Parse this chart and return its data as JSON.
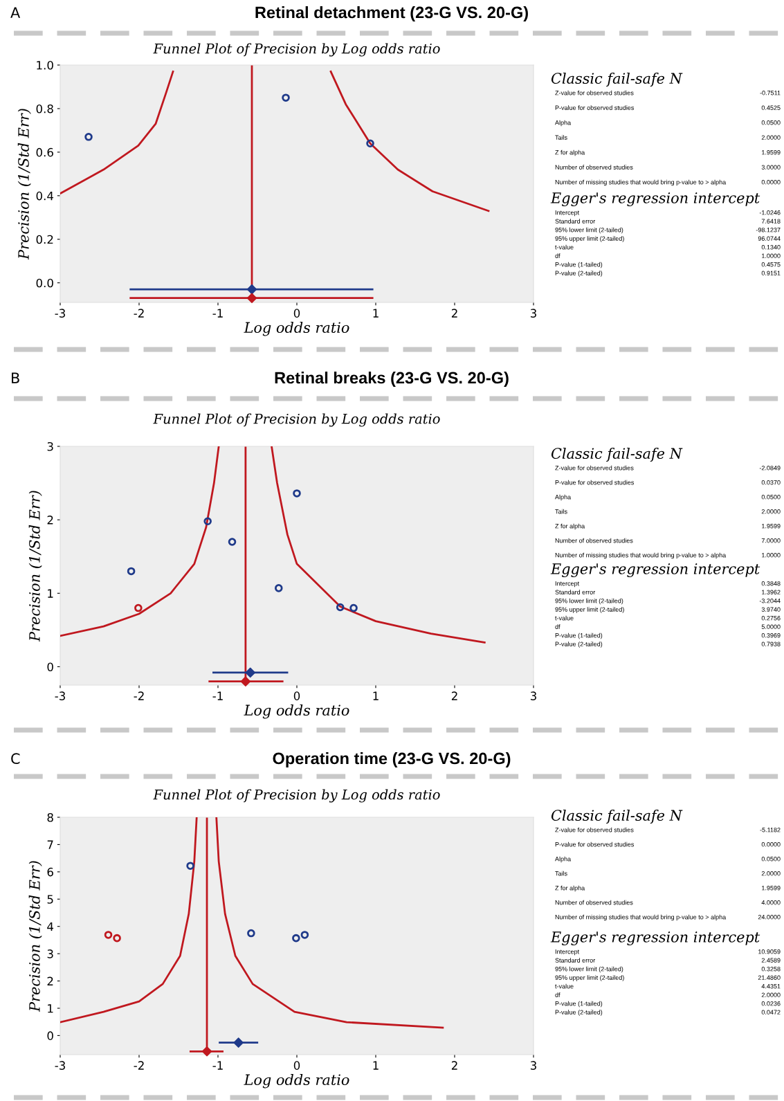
{
  "chart_data": [
    {
      "type": "scatter",
      "title": "Retinal detachment (23-G VS. 20-G)",
      "subtitle": "Funnel Plot of Precision by Log odds ratio",
      "xlabel": "Log odds ratio",
      "ylabel": "Precision (1/Std Err)",
      "annotations": [
        "A"
      ],
      "xlim": [
        -3,
        3
      ],
      "xticks": [
        -3,
        -2,
        -1,
        0,
        1,
        2,
        3
      ],
      "ylim": [
        -0.09,
        1.0
      ],
      "yticks": [
        {
          "value": 0,
          "label": "0.0"
        },
        0.2,
        0.4,
        0.6,
        0.8,
        {
          "value": 1,
          "label": "1.0"
        }
      ],
      "grid": false,
      "ref_lines": [
        {
          "axis": "x",
          "value": -0.57,
          "color": "#c0181f"
        }
      ],
      "series": [
        {
          "type": "line",
          "color": "#c0181f",
          "x": [
            -3,
            -2.45,
            -2.01,
            -1.79,
            -1.66,
            -1.57
          ],
          "values": [
            0.41,
            0.52,
            0.63,
            0.73,
            0.87,
            0.97
          ]
        },
        {
          "type": "line",
          "color": "#c0181f",
          "x": [
            0.43,
            0.62,
            0.93,
            1.28,
            1.72,
            2.43
          ],
          "values": [
            0.97,
            0.82,
            0.64,
            0.52,
            0.42,
            0.33
          ]
        },
        {
          "type": "scatter",
          "marker": "circle",
          "color": "#1f3a8a",
          "x": [
            -2.64,
            -0.14,
            0.93
          ],
          "values": [
            0.67,
            0.85,
            0.64
          ]
        },
        {
          "type": "scatter",
          "marker": "diamond",
          "color": "#1f3a8a",
          "x": [
            -0.57
          ],
          "values": [
            -0.03
          ],
          "xerrors": [
            [
              -2.12,
              0.97
            ]
          ]
        },
        {
          "type": "scatter",
          "marker": "diamond",
          "color": "#c0181f",
          "x": [
            -0.57
          ],
          "values": [
            -0.07
          ],
          "xerrors": [
            [
              -2.12,
              0.97
            ]
          ]
        }
      ]
    },
    {
      "type": "other",
      "title": "Classic fail-safe N",
      "categories": [
        "Z-value for observed studies",
        "P-value for observed studies",
        "Alpha",
        "Tails",
        "Z for alpha",
        "Number of observed studies",
        "Number of missing studies that would bring p-value to > alpha"
      ],
      "value_labels": [
        "-0.7511",
        "0.4525",
        "0.0500",
        "2.0000",
        "1.9599",
        "3.0000",
        "0.0000"
      ]
    },
    {
      "type": "other",
      "title": "Egger's regression intercept",
      "categories": [
        "Intercept",
        "Standard error",
        "95% lower limit (2-tailed)",
        "95% upper limit (2-tailed)",
        "t-value",
        "df",
        "P-value (1-tailed)",
        "P-value (2-tailed)"
      ],
      "value_labels": [
        "-1.0246",
        "7.6418",
        "-98.1237",
        "96.0744",
        "0.1340",
        "1.0000",
        "0.4575",
        "0.9151"
      ]
    },
    {
      "type": "scatter",
      "title": "Retinal breaks (23-G VS. 20-G)",
      "subtitle": "Funnel Plot of Precision by Log odds ratio",
      "xlabel": "Log odds ratio",
      "ylabel": "Precision (1/Std Err)",
      "annotations": [
        "B"
      ],
      "xlim": [
        -3,
        3
      ],
      "xticks": [
        -3,
        -2,
        -1,
        0,
        1,
        2,
        3
      ],
      "ylim": [
        -0.25,
        3
      ],
      "yticks": [
        0,
        1,
        2,
        3
      ],
      "grid": false,
      "ref_lines": [
        {
          "axis": "x",
          "value": -0.65,
          "color": "#c0181f"
        }
      ],
      "series": [
        {
          "type": "line",
          "color": "#c0181f",
          "x": [
            -3,
            -2.45,
            -2.0,
            -1.6,
            -1.3,
            -1.15,
            -1.05,
            -0.99
          ],
          "values": [
            0.42,
            0.55,
            0.72,
            1.0,
            1.4,
            1.9,
            2.5,
            3.0
          ]
        },
        {
          "type": "line",
          "color": "#c0181f",
          "x": [
            -0.32,
            -0.25,
            -0.12,
            0.0,
            0.55,
            1.0,
            1.7,
            2.38
          ],
          "values": [
            3.0,
            2.5,
            1.8,
            1.4,
            0.82,
            0.62,
            0.45,
            0.33
          ]
        },
        {
          "type": "scatter",
          "marker": "circle",
          "color": "#1f3a8a",
          "x": [
            -2.1,
            -1.13,
            -0.82,
            0.0,
            -0.23,
            0.55,
            0.72
          ],
          "values": [
            1.3,
            1.98,
            1.7,
            2.36,
            1.07,
            0.81,
            0.8
          ]
        },
        {
          "type": "scatter",
          "marker": "circle",
          "color": "#c0181f",
          "x": [
            -2.01
          ],
          "values": [
            0.8
          ]
        },
        {
          "type": "scatter",
          "marker": "diamond",
          "color": "#1f3a8a",
          "x": [
            -0.59
          ],
          "values": [
            -0.08
          ],
          "xerrors": [
            [
              -1.07,
              -0.11
            ]
          ]
        },
        {
          "type": "scatter",
          "marker": "diamond",
          "color": "#c0181f",
          "x": [
            -0.65
          ],
          "values": [
            -0.2
          ],
          "xerrors": [
            [
              -1.12,
              -0.17
            ]
          ]
        }
      ]
    },
    {
      "type": "other",
      "title": "Classic fail-safe N",
      "categories": [
        "Z-value for observed studies",
        "P-value for observed studies",
        "Alpha",
        "Tails",
        "Z for alpha",
        "Number of observed studies",
        "Number of missing studies that would bring p-value to > alpha"
      ],
      "value_labels": [
        "-2.0849",
        "0.0370",
        "0.0500",
        "2.0000",
        "1.9599",
        "7.0000",
        "1.0000"
      ]
    },
    {
      "type": "other",
      "title": "Egger's regression intercept",
      "categories": [
        "Intercept",
        "Standard error",
        "95% lower limit (2-tailed)",
        "95% upper limit (2-tailed)",
        "t-value",
        "df",
        "P-value (1-tailed)",
        "P-value (2-tailed)"
      ],
      "value_labels": [
        "0.3848",
        "1.3962",
        "-3.2044",
        "3.9740",
        "0.2756",
        "5.0000",
        "0.3969",
        "0.7938"
      ]
    },
    {
      "type": "scatter",
      "title": "Operation time (23-G VS. 20-G)",
      "subtitle": "Funnel Plot of Precision by Log odds ratio",
      "xlabel": "Log odds ratio",
      "ylabel": "Precision (1/Std Err)",
      "annotations": [
        "C"
      ],
      "xlim": [
        -3,
        3
      ],
      "xticks": [
        -3,
        -2,
        -1,
        0,
        1,
        2,
        3
      ],
      "ylim": [
        -0.7,
        8
      ],
      "yticks": [
        0,
        1,
        2,
        3,
        4,
        5,
        6,
        7,
        8
      ],
      "grid": false,
      "ref_lines": [
        {
          "axis": "x",
          "value": -1.14,
          "color": "#c0181f"
        }
      ],
      "series": [
        {
          "type": "line",
          "color": "#c0181f",
          "x": [
            -3,
            -2.45,
            -2.0,
            -1.7,
            -1.48,
            -1.37,
            -1.3,
            -1.27
          ],
          "values": [
            0.49,
            0.87,
            1.25,
            1.89,
            2.92,
            4.46,
            6.38,
            8
          ]
        },
        {
          "type": "line",
          "color": "#c0181f",
          "x": [
            -1.02,
            -0.99,
            -0.91,
            -0.78,
            -0.56,
            -0.03,
            0.63,
            1.85
          ],
          "values": [
            8,
            6.38,
            4.46,
            2.92,
            1.89,
            0.87,
            0.49,
            0.29
          ]
        },
        {
          "type": "scatter",
          "marker": "circle",
          "color": "#1f3a8a",
          "x": [
            -1.35,
            -0.58,
            -0.01,
            0.1
          ],
          "values": [
            6.22,
            3.75,
            3.57,
            3.69
          ]
        },
        {
          "type": "scatter",
          "marker": "circle",
          "color": "#c0181f",
          "x": [
            -2.39,
            -2.28
          ],
          "values": [
            3.69,
            3.57
          ]
        },
        {
          "type": "scatter",
          "marker": "diamond",
          "color": "#1f3a8a",
          "x": [
            -0.74
          ],
          "values": [
            -0.26
          ],
          "xerrors": [
            [
              -0.99,
              -0.49
            ]
          ]
        },
        {
          "type": "scatter",
          "marker": "diamond",
          "color": "#c0181f",
          "x": [
            -1.14
          ],
          "values": [
            -0.58
          ],
          "xerrors": [
            [
              -1.36,
              -0.93
            ]
          ]
        }
      ]
    },
    {
      "type": "other",
      "title": "Classic fail-safe N",
      "categories": [
        "Z-value for observed studies",
        "P-value for observed studies",
        "Alpha",
        "Tails",
        "Z for alpha",
        "Number of observed studies",
        "Number of missing studies that would bring p-value to > alpha"
      ],
      "value_labels": [
        "-5.1182",
        "0.0000",
        "0.0500",
        "2.0000",
        "1.9599",
        "4.0000",
        "24.0000"
      ]
    },
    {
      "type": "other",
      "title": "Egger's regression intercept",
      "categories": [
        "Intercept",
        "Standard error",
        "95% lower limit (2-tailed)",
        "95% upper limit (2-tailed)",
        "t-value",
        "df",
        "P-value (1-tailed)",
        "P-value (2-tailed)"
      ],
      "value_labels": [
        "10.9059",
        "2.4589",
        "0.3258",
        "21.4860",
        "4.4351",
        "2.0000",
        "0.0236",
        "0.0472"
      ]
    }
  ]
}
